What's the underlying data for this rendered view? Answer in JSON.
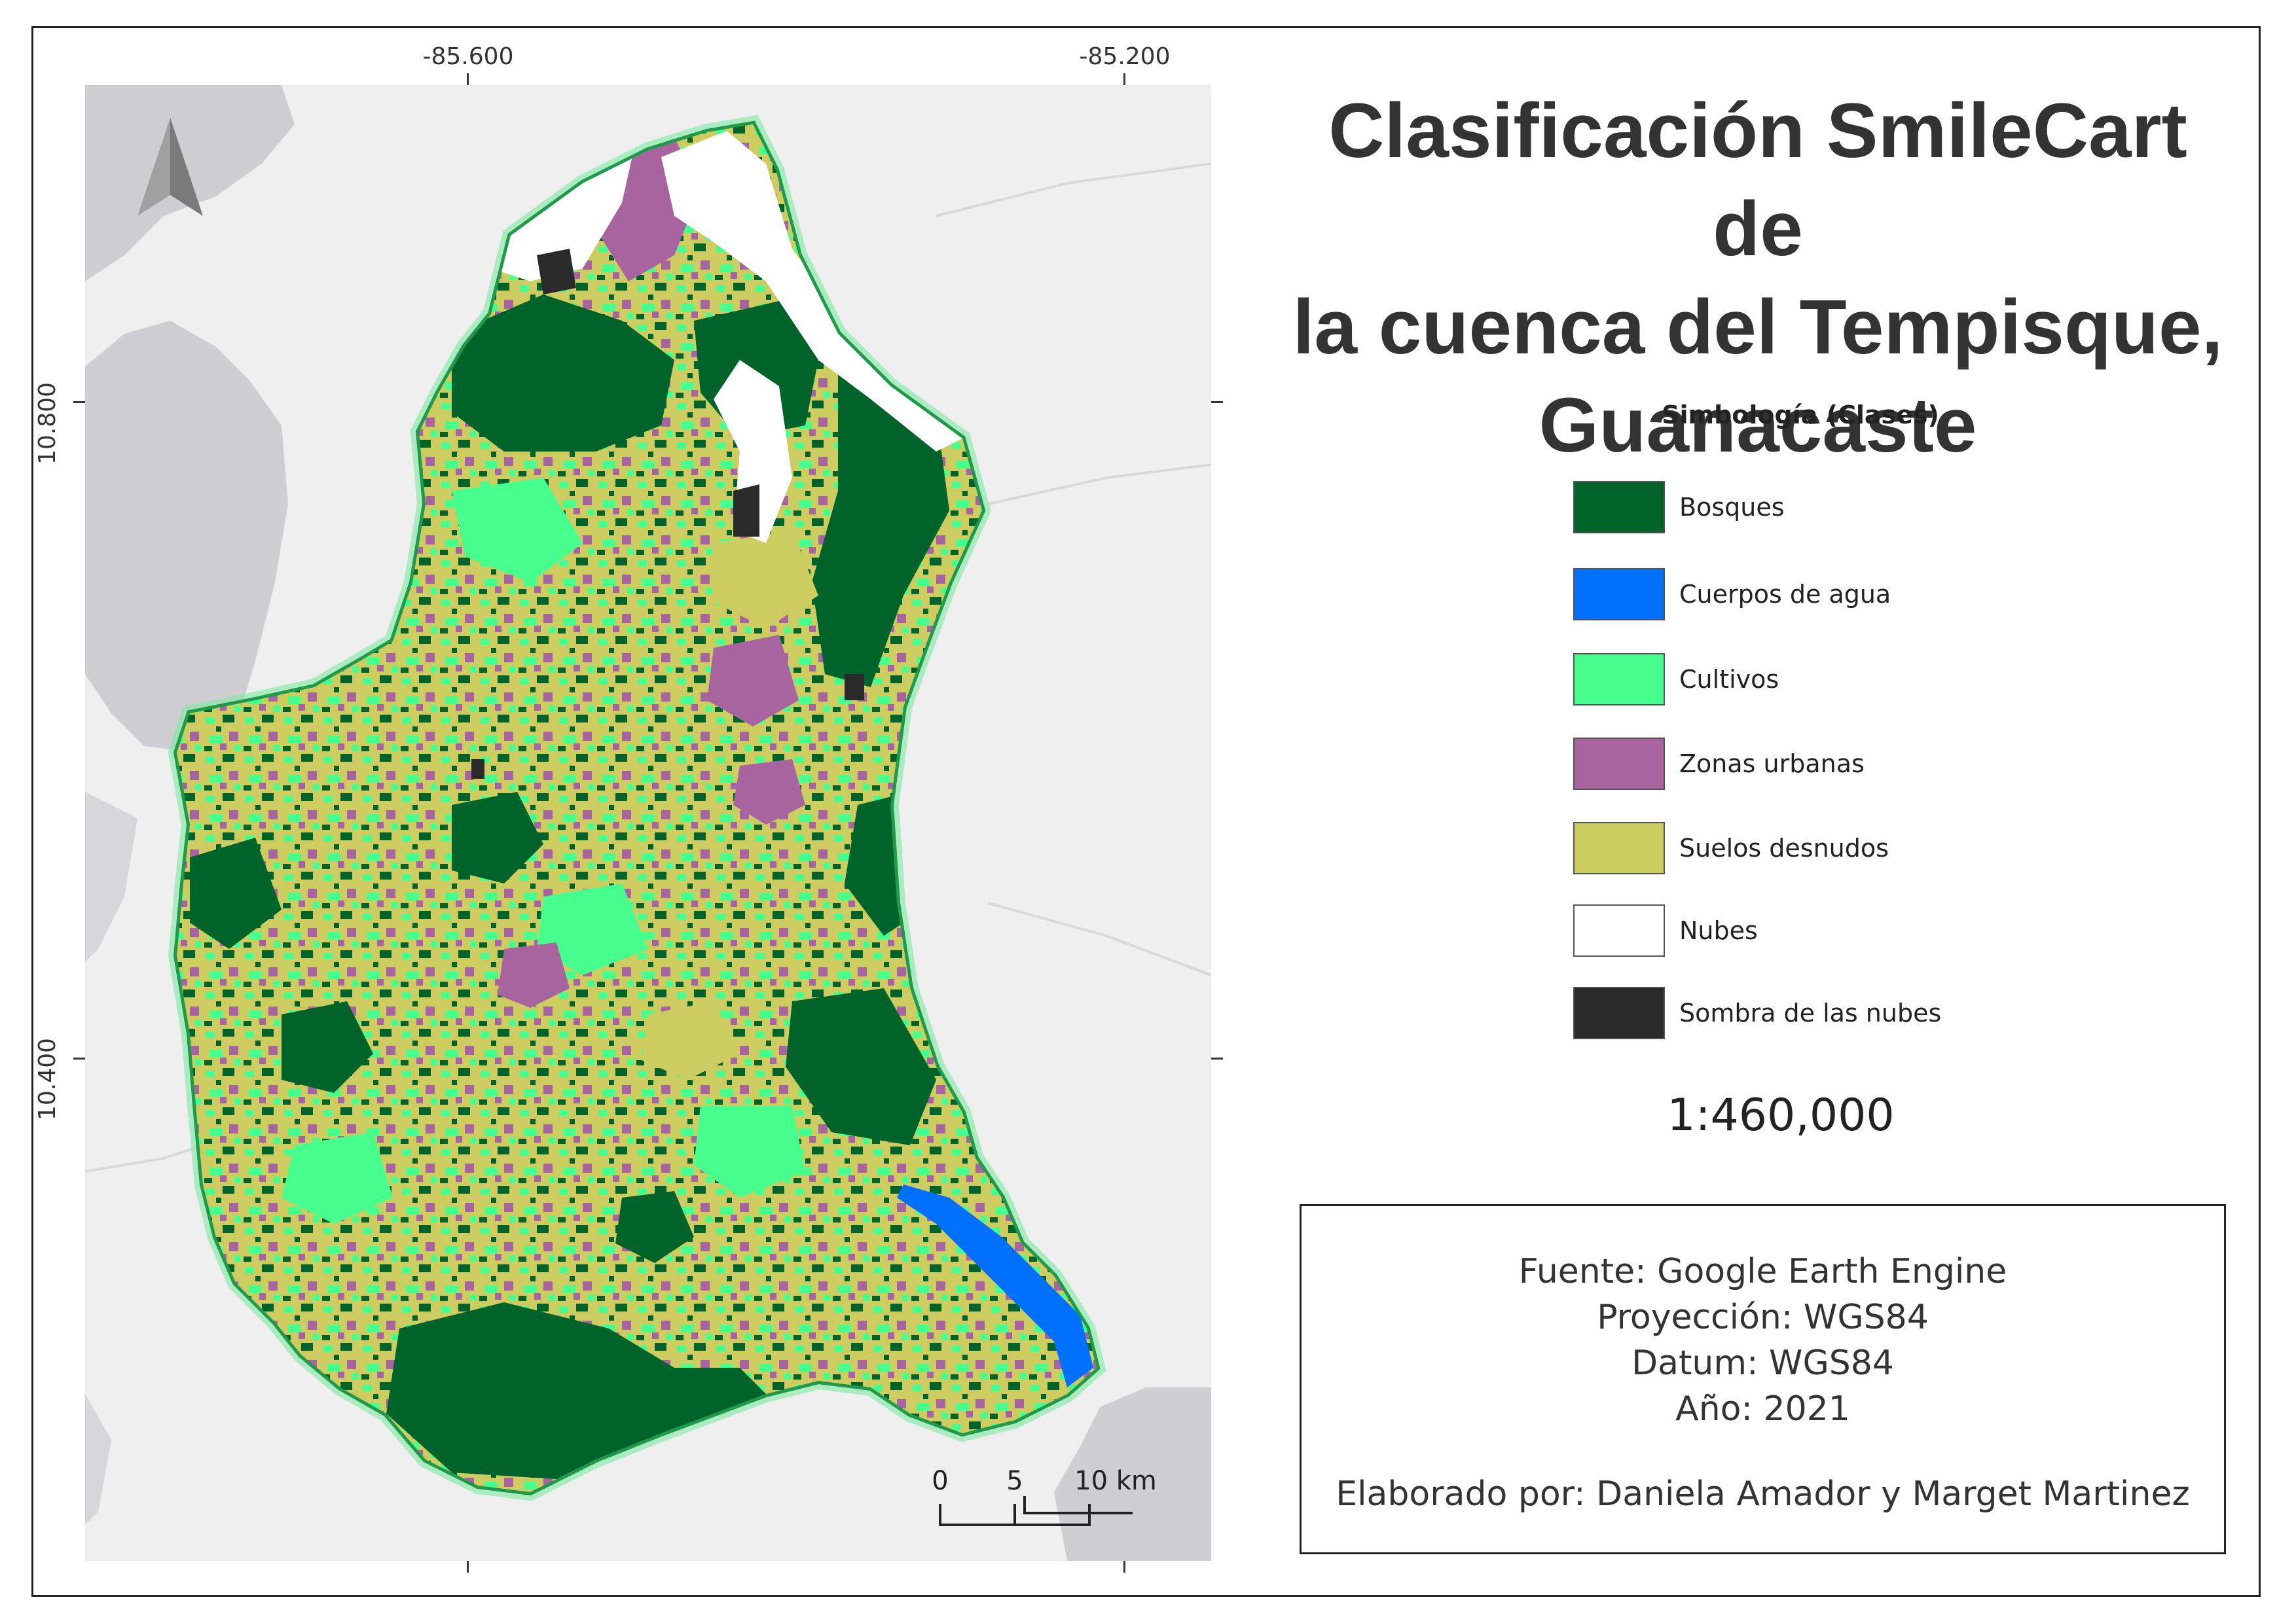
{
  "title": "Clasificación SmileCart de la cuenca del Tempisque, Guanacaste",
  "title_lines": [
    "Clasificación SmileCart de",
    "la cuenca del Tempisque,",
    "Guanacaste"
  ],
  "coordinates": {
    "longitude_labels": [
      "-85.600",
      "-85.200"
    ],
    "latitude_labels": [
      "10.800",
      "10.400"
    ]
  },
  "north_arrow": {
    "icon": "north-arrow-icon"
  },
  "legend": {
    "title": "Simbología (Clases)",
    "items": [
      {
        "label": "Bosques",
        "color": "#00632a"
      },
      {
        "label": "Cuerpos de agua",
        "color": "#0070ff"
      },
      {
        "label": "Cultivos",
        "color": "#46ff8c"
      },
      {
        "label": "Zonas urbanas",
        "color": "#a8649f"
      },
      {
        "label": "Suelos desnudos",
        "color": "#cccc60"
      },
      {
        "label": "Nubes",
        "color": "#ffffff"
      },
      {
        "label": "Sombra de las nubes",
        "color": "#2a2a2a"
      }
    ]
  },
  "scale": {
    "ratio": "1:460,000",
    "bar_labels": [
      "0",
      "5",
      "10 km"
    ]
  },
  "info": {
    "lines": [
      "Fuente: Google Earth Engine",
      "Proyección: WGS84",
      "Datum: WGS84",
      "Año: 2021"
    ],
    "author": "Elaborado por: Daniela Amador y Marget Martinez"
  }
}
